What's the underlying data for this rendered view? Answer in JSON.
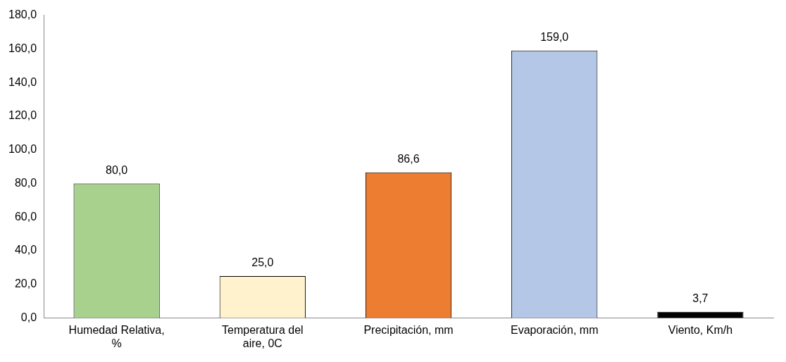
{
  "chart_data": {
    "type": "bar",
    "categories": [
      "Humedad Relativa, %",
      "Temperatura del aire, 0C",
      "Precipitación, mm",
      "Evaporación, mm",
      "Viento, Km/h"
    ],
    "values": [
      80.0,
      25.0,
      86.6,
      159.0,
      3.7
    ],
    "colors": [
      "#a9d18e",
      "#fff2cc",
      "#ed7d31",
      "#b4c7e7",
      "#000000"
    ],
    "value_labels": [
      "80,0",
      "25,0",
      "86,6",
      "159,0",
      "3,7"
    ],
    "ylim": [
      0,
      180
    ],
    "yticks": [
      {
        "value": 0,
        "label": "0,0"
      },
      {
        "value": 20,
        "label": "20,0"
      },
      {
        "value": 40,
        "label": "40,0"
      },
      {
        "value": 60,
        "label": "60,0"
      },
      {
        "value": 80,
        "label": "80,0"
      },
      {
        "value": 100,
        "label": "100,0"
      },
      {
        "value": 120,
        "label": "120,0"
      },
      {
        "value": 140,
        "label": "140,0"
      },
      {
        "value": 160,
        "label": "160,0"
      },
      {
        "value": 180,
        "label": "180,0"
      }
    ],
    "grid": false,
    "legend": false
  }
}
